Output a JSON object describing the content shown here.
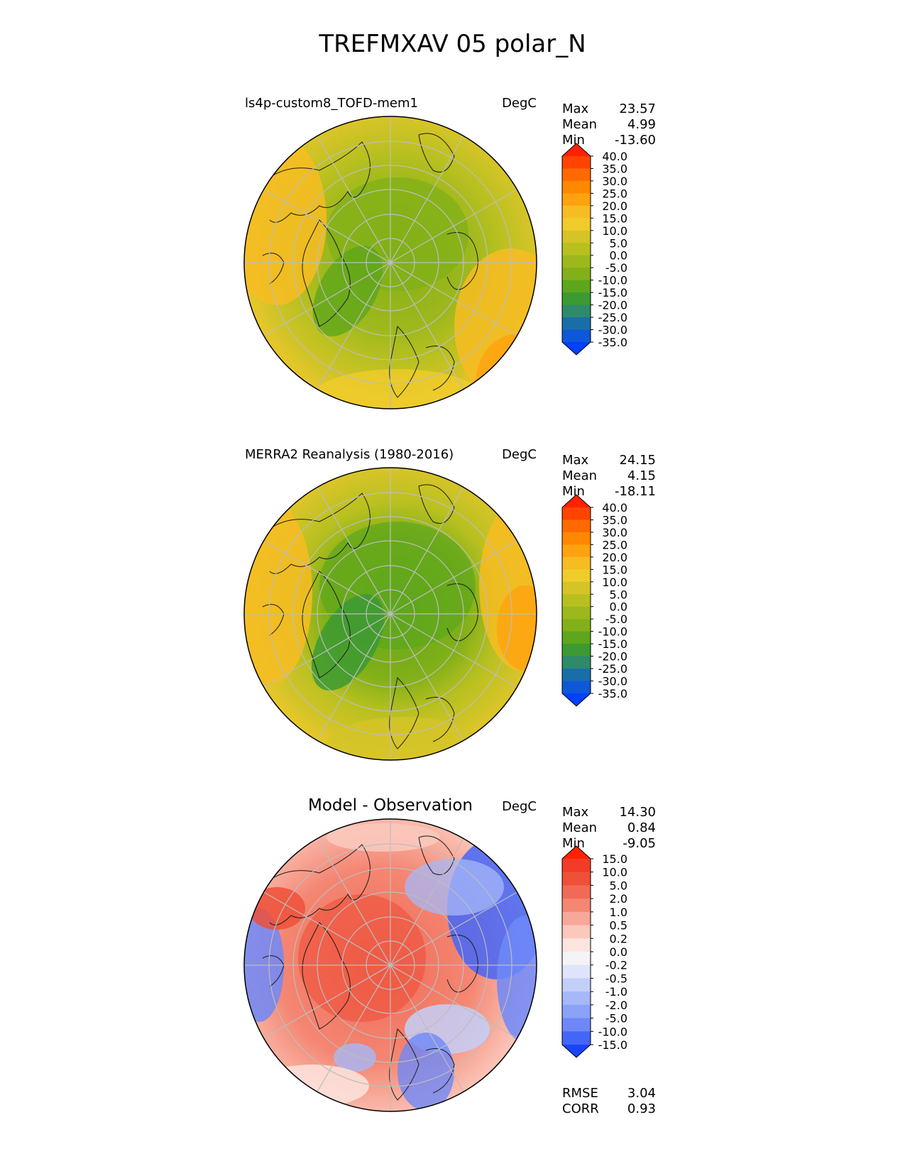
{
  "figure": {
    "title": "TREFMXAV 05 polar_N"
  },
  "panels": [
    {
      "title_left": "ls4p-custom8_TOFD-mem1",
      "title_center": "",
      "units": "DegC",
      "stats": [
        {
          "label": "Max",
          "value": "23.57"
        },
        {
          "label": "Mean",
          "value": "4.99"
        },
        {
          "label": "Min",
          "value": "-13.60"
        }
      ],
      "extra_stats": [],
      "colorbar": {
        "levels": [
          "40.0",
          "35.0",
          "30.0",
          "25.0",
          "20.0",
          "15.0",
          "10.0",
          "5.0",
          "0.0",
          "-5.0",
          "-10.0",
          "-15.0",
          "-20.0",
          "-25.0",
          "-30.0",
          "-35.0"
        ],
        "colors": [
          "#ff2200",
          "#ff4400",
          "#ff6a00",
          "#ff8800",
          "#ffa20f",
          "#f7bc22",
          "#f0cc2a",
          "#d4c428",
          "#b8c020",
          "#9db81c",
          "#82b018",
          "#5ea61c",
          "#3c9a32",
          "#2e8a6a",
          "#1a6ea8",
          "#0d58d8",
          "#0040ff"
        ]
      }
    },
    {
      "title_left": "MERRA2 Reanalysis (1980-2016)",
      "title_center": "",
      "units": "DegC",
      "stats": [
        {
          "label": "Max",
          "value": "24.15"
        },
        {
          "label": "Mean",
          "value": "4.15"
        },
        {
          "label": "Min",
          "value": "-18.11"
        }
      ],
      "extra_stats": [],
      "colorbar": {
        "levels": [
          "40.0",
          "35.0",
          "30.0",
          "25.0",
          "20.0",
          "15.0",
          "10.0",
          "5.0",
          "0.0",
          "-5.0",
          "-10.0",
          "-15.0",
          "-20.0",
          "-25.0",
          "-30.0",
          "-35.0"
        ],
        "colors": [
          "#ff2200",
          "#ff4400",
          "#ff6a00",
          "#ff8800",
          "#ffa20f",
          "#f7bc22",
          "#f0cc2a",
          "#d4c428",
          "#b8c020",
          "#9db81c",
          "#82b018",
          "#5ea61c",
          "#3c9a32",
          "#2e8a6a",
          "#1a6ea8",
          "#0d58d8",
          "#0040ff"
        ]
      }
    },
    {
      "title_left": "",
      "title_center": "Model - Observation",
      "units": "DegC",
      "stats": [
        {
          "label": "Max",
          "value": "14.30"
        },
        {
          "label": "Mean",
          "value": "0.84"
        },
        {
          "label": "Min",
          "value": "-9.05"
        }
      ],
      "extra_stats": [
        {
          "label": "RMSE",
          "value": "3.04"
        },
        {
          "label": "CORR",
          "value": "0.93"
        }
      ],
      "colorbar": {
        "levels": [
          "15.0",
          "10.0",
          "5.0",
          "2.0",
          "1.0",
          "0.5",
          "0.2",
          "0.0",
          "-0.2",
          "-0.5",
          "-1.0",
          "-2.0",
          "-5.0",
          "-10.0",
          "-15.0"
        ],
        "colors": [
          "#ff2200",
          "#f43a28",
          "#ee5038",
          "#f06a55",
          "#f48672",
          "#f8a898",
          "#fbc8bc",
          "#fde4de",
          "#f4f4f8",
          "#dfe4fa",
          "#c4cff8",
          "#a6b8f8",
          "#8aa2f8",
          "#6e88f8",
          "#4466f8",
          "#1a44fc"
        ]
      }
    }
  ]
}
